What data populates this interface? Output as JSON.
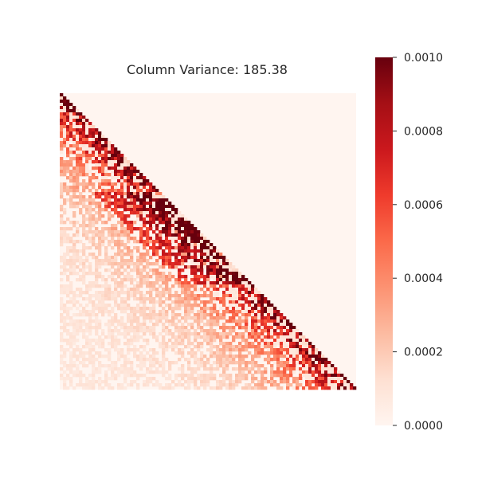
{
  "chart_data": {
    "type": "heatmap",
    "title": "Column Variance: 185.38",
    "xlabel": "",
    "ylabel": "",
    "mask": "upper-triangle",
    "grid": false,
    "colormap": {
      "name": "Reds",
      "stops": [
        "#fff5f0",
        "#fee0d2",
        "#fcbba1",
        "#fc9272",
        "#fb6a4a",
        "#ef3b2c",
        "#cb181d",
        "#a50f15",
        "#67000d"
      ]
    },
    "colorbar": {
      "range": [
        0.0,
        0.001
      ],
      "ticks": [
        0.0,
        0.0002,
        0.0004,
        0.0006,
        0.0008,
        0.001
      ],
      "tick_labels": [
        "0.0000",
        "0.0002",
        "0.0004",
        "0.0006",
        "0.0008",
        "0.0010"
      ],
      "position": "right"
    },
    "description_of_values": "Lower-triangular correlation-style matrix, dense high values near the diagonal fading to sparse low values far from it"
  }
}
